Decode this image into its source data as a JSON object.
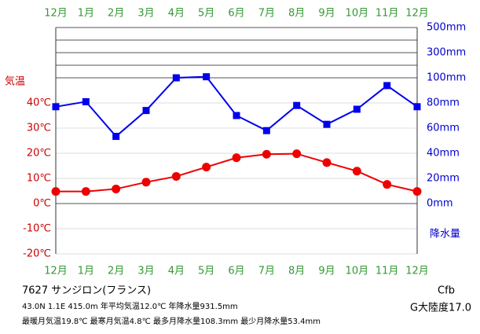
{
  "chart_data": {
    "type": "line",
    "categories": [
      "12月",
      "1月",
      "2月",
      "3月",
      "4月",
      "5月",
      "6月",
      "7月",
      "8月",
      "9月",
      "10月",
      "11月",
      "12月"
    ],
    "ylabel": "気温",
    "y2label": "降水量",
    "ylim": [
      -20,
      70
    ],
    "yticks": [
      {
        "value": -20,
        "label": "-20℃"
      },
      {
        "value": -10,
        "label": "-10℃"
      },
      {
        "value": 0,
        "label": "0℃"
      },
      {
        "value": 10,
        "label": "10℃"
      },
      {
        "value": 20,
        "label": "20℃"
      },
      {
        "value": 30,
        "label": "30℃"
      },
      {
        "value": 40,
        "label": "40℃"
      }
    ],
    "y2lim": [
      -40,
      500
    ],
    "y2_break": 100,
    "y2ticks": [
      {
        "value": 0,
        "label": "0mm"
      },
      {
        "value": 20,
        "label": "20mm"
      },
      {
        "value": 40,
        "label": "40mm"
      },
      {
        "value": 60,
        "label": "60mm"
      },
      {
        "value": 80,
        "label": "80mm"
      },
      {
        "value": 100,
        "label": "100mm"
      },
      {
        "value": 300,
        "label": "300mm"
      },
      {
        "value": 500,
        "label": "500mm"
      }
    ],
    "y2_minor_ticks": [
      200,
      400
    ],
    "series": [
      {
        "name": "気温",
        "color": "#ee0000",
        "values": [
          4.8,
          4.8,
          5.8,
          8.5,
          10.8,
          14.5,
          18.2,
          19.6,
          19.8,
          16.3,
          12.9,
          7.6,
          4.8
        ]
      },
      {
        "name": "降水量",
        "color": "#0000ee",
        "axis": "y2",
        "values": [
          77,
          81,
          53.4,
          74,
          100,
          108.3,
          70,
          58,
          78,
          63,
          75,
          93.8,
          77
        ]
      }
    ],
    "info": {
      "station": "7627 サンジロン(フランス)",
      "line1": "43.0N  1.1E  415.0m 年平均気温12.0℃ 年降水量931.5mm",
      "line2": "最暖月気温19.8℃ 最寒月気温4.8℃ 最多月降水量108.3mm 最少月降水量53.4mm",
      "climate": "Cfb",
      "continentality": "G大陸度17.0"
    }
  }
}
